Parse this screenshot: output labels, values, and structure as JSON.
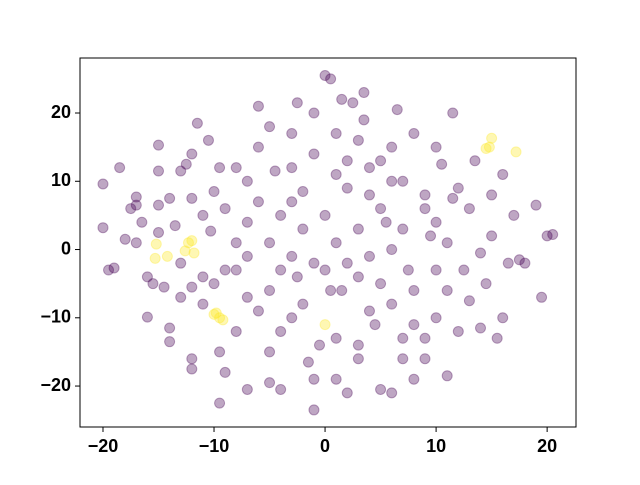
{
  "chart_data": {
    "type": "scatter",
    "xlim": [
      -22.07,
      22.6
    ],
    "ylim": [
      -26.0,
      28.06
    ],
    "xticks": [
      {
        "value": -20,
        "label": "−20"
      },
      {
        "value": -10,
        "label": "−10"
      },
      0,
      10,
      20
    ],
    "yticks": [
      {
        "value": -20,
        "label": "−20"
      },
      {
        "value": -10,
        "label": "−10"
      },
      0,
      10,
      20
    ],
    "alpha": 0.35,
    "series": [
      {
        "color": "#440154",
        "x": [
          -20,
          -20,
          -19.5,
          -19,
          -18.5,
          -18,
          -17.5,
          -17,
          -17,
          -16.5,
          -16,
          -15.5,
          -15,
          -15,
          -15,
          -14.5,
          -14,
          -14,
          -14,
          -13.5,
          -13,
          -13,
          -12.5,
          -12,
          -12,
          -12,
          -12,
          -11.5,
          -11,
          -10.5,
          -10,
          -10,
          -9.5,
          -9.5,
          -9,
          -9.5,
          -12,
          -11,
          -10.3,
          -8,
          -7,
          -8,
          -8,
          -7,
          -7,
          -6,
          -6,
          -5,
          -5,
          -4.5,
          -4,
          -4,
          -3,
          -3,
          -2.5,
          -2.5,
          -2,
          -1.5,
          -1,
          -1,
          -0.5,
          0,
          0.5,
          0.5,
          1,
          1,
          1.5,
          1.5,
          2,
          2,
          2.5,
          3,
          3,
          3.5,
          3.5,
          4,
          4,
          4.5,
          5,
          5.5,
          6,
          6,
          6.5,
          7,
          7,
          7.5,
          8,
          8,
          9,
          9,
          9.5,
          10,
          10,
          10.5,
          11,
          11.5,
          11.5,
          12,
          12.5,
          13,
          13,
          13.5,
          14,
          14,
          14.5,
          15,
          15,
          15.5,
          16,
          16,
          16.5,
          17,
          17.5,
          18,
          19,
          19.5,
          20,
          20.5,
          -6,
          -5,
          -4,
          -3,
          -2,
          -1,
          0,
          1,
          2,
          3,
          4,
          5,
          6,
          7,
          8,
          9,
          10,
          11,
          -7,
          -8,
          -9,
          -6,
          -4,
          -2,
          0,
          2,
          4,
          6,
          8,
          -3,
          -1,
          1,
          3,
          5,
          -5,
          -7,
          -9,
          -11,
          -3,
          1,
          3,
          5,
          7,
          9,
          11,
          -1,
          -5,
          6,
          10,
          12,
          -13,
          -15,
          -16,
          -17
        ],
        "y": [
          9.6,
          3.2,
          -3,
          -2.7,
          12,
          1.5,
          6,
          7.7,
          6.5,
          4,
          -9.9,
          -5,
          15.3,
          11.5,
          6.5,
          -5.5,
          -11.5,
          -13.5,
          7.5,
          3.5,
          11.5,
          -7,
          12.5,
          14,
          -5.5,
          -17.5,
          -16,
          18.5,
          -4,
          16,
          8.5,
          -5,
          -15,
          12,
          -18,
          -22.5,
          7.5,
          5,
          2.7,
          -3,
          4,
          12,
          -12,
          -20.5,
          -7,
          21,
          15,
          -15,
          -19.5,
          11.5,
          -3,
          -20.5,
          17,
          -10,
          21.5,
          -4,
          8.5,
          -16.5,
          20,
          -23.5,
          -14,
          25.5,
          25,
          -6,
          17,
          -19,
          22,
          -6,
          13,
          -21,
          21.5,
          -4,
          -14,
          23,
          19,
          8,
          -9,
          -11,
          -20.5,
          4,
          -21,
          15,
          20.5,
          10,
          -13,
          -3,
          17,
          -19,
          6,
          -16,
          2,
          15,
          -10,
          12.5,
          -18.5,
          20,
          7.5,
          -12,
          -3,
          6,
          -7.5,
          13,
          -0.5,
          -11.5,
          -5,
          8,
          2,
          -13,
          -10,
          11,
          -2,
          5,
          -1.5,
          -2,
          6.5,
          -7,
          2,
          2.2,
          7,
          1,
          5,
          -1,
          3,
          -2,
          5,
          1,
          -2,
          3,
          -1,
          6,
          0,
          3,
          -6,
          8,
          -3,
          1,
          -1,
          1,
          -3,
          -9,
          -12,
          -8,
          -3,
          9,
          12,
          -8,
          -11,
          12,
          14,
          11,
          16,
          13,
          18,
          10,
          6,
          -8,
          7,
          -13,
          -16,
          -5,
          -16,
          -13,
          -6,
          -19,
          -6,
          10,
          4,
          9,
          -2,
          2.5,
          -4,
          1
        ]
      },
      {
        "color": "#fde725",
        "x": [
          -15.2,
          -15.3,
          -14.2,
          -12,
          -12.3,
          -11.8,
          -12.6,
          -9.8,
          -9.5,
          -9.2,
          -10,
          0,
          14.8,
          15,
          17.2,
          14.5
        ],
        "y": [
          0.8,
          -1.3,
          -1,
          1.3,
          1,
          -0.5,
          -0.2,
          -9.3,
          -10,
          -10.3,
          -9.5,
          -11,
          15,
          16.3,
          14.3,
          14.8
        ]
      }
    ]
  }
}
